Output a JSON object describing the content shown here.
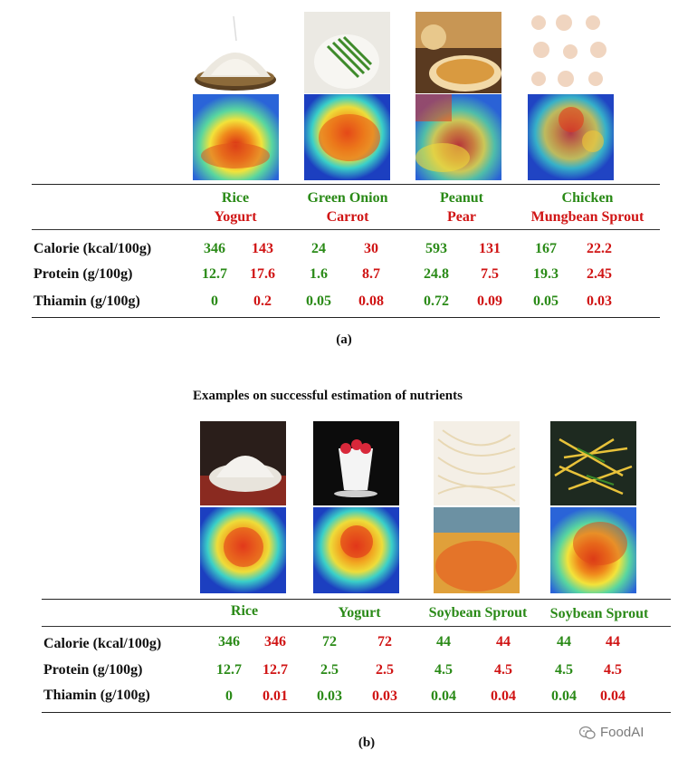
{
  "panel_a": {
    "food_headers": [
      {
        "green": "Rice",
        "red": "Yogurt"
      },
      {
        "green": "Green Onion",
        "red": "Carrot"
      },
      {
        "green": "Peanut",
        "red": "Pear"
      },
      {
        "green": "Chicken",
        "red": "Mungbean Sprout"
      }
    ],
    "rows": [
      {
        "label": "Calorie (kcal/100g)",
        "values": [
          "346",
          "143",
          "24",
          "30",
          "593",
          "131",
          "167",
          "22.2"
        ]
      },
      {
        "label": "Protein (g/100g)",
        "values": [
          "12.7",
          "17.6",
          "1.6",
          "8.7",
          "24.8",
          "7.5",
          "19.3",
          "2.45"
        ]
      },
      {
        "label": "Thiamin (g/100g)",
        "values": [
          "0",
          "0.2",
          "0.05",
          "0.08",
          "0.72",
          "0.09",
          "0.05",
          "0.03"
        ]
      }
    ],
    "caption": "(a)"
  },
  "panel_b": {
    "title": "Examples on successful estimation of nutrients",
    "food_headers": [
      "Rice",
      "Yogurt",
      "Soybean Sprout",
      "Soybean Sprout"
    ],
    "rows": [
      {
        "label": "Calorie (kcal/100g)",
        "values": [
          "346",
          "346",
          "72",
          "72",
          "44",
          "44",
          "44",
          "44"
        ]
      },
      {
        "label": "Protein (g/100g)",
        "values": [
          "12.7",
          "12.7",
          "2.5",
          "2.5",
          "4.5",
          "4.5",
          "4.5",
          "4.5"
        ]
      },
      {
        "label": "Thiamin (g/100g)",
        "values": [
          "0",
          "0.01",
          "0.03",
          "0.03",
          "0.04",
          "0.04",
          "0.04",
          "0.04"
        ]
      }
    ],
    "caption": "(b)"
  },
  "watermark": {
    "icon": "wechat-icon",
    "text": "FoodAI"
  },
  "colors": {
    "ground_truth": "#2a8a17",
    "estimate": "#d01414"
  }
}
